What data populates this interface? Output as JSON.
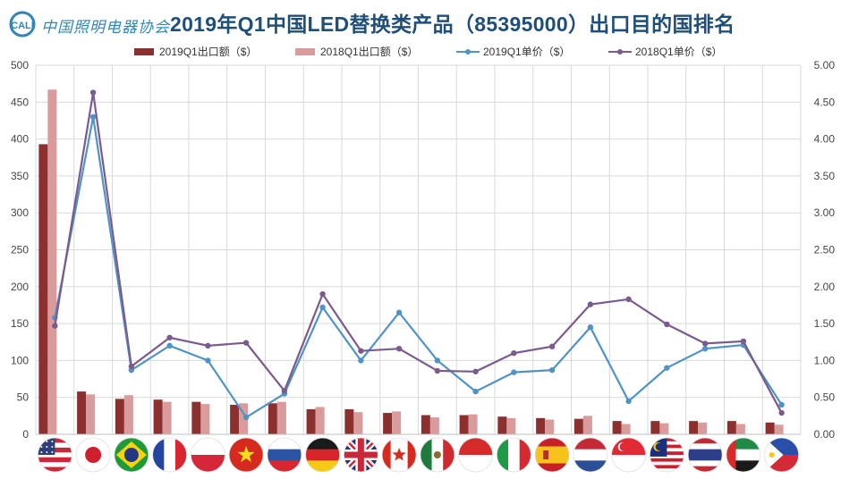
{
  "header": {
    "logo_text": "中国照明电器协会",
    "logo_mark": "CALI",
    "title": "2019年Q1中国LED替换类产品（85395000）出口目的国排名"
  },
  "chart_data": {
    "type": "bar",
    "categories": [
      "美国",
      "日本",
      "巴西",
      "法国",
      "波兰",
      "越南",
      "俄罗斯",
      "德国",
      "英国",
      "加拿大",
      "墨西哥",
      "印度尼西亚",
      "意大利",
      "西班牙",
      "荷兰",
      "新加坡",
      "马来西亚",
      "泰国",
      "阿联酋",
      "菲律宾"
    ],
    "category_icons": [
      "flag-usa-icon",
      "flag-japan-icon",
      "flag-brazil-icon",
      "flag-france-icon",
      "flag-poland-icon",
      "flag-vietnam-icon",
      "flag-russia-icon",
      "flag-germany-icon",
      "flag-uk-icon",
      "flag-canada-icon",
      "flag-mexico-icon",
      "flag-indonesia-icon",
      "flag-italy-icon",
      "flag-spain-icon",
      "flag-netherlands-icon",
      "flag-singapore-icon",
      "flag-malaysia-icon",
      "flag-thailand-icon",
      "flag-uae-icon",
      "flag-philippines-icon"
    ],
    "series": [
      {
        "name": "2019Q1出口额（$）",
        "kind": "bar",
        "axis": "left",
        "color": "#8b2f2f",
        "values": [
          393,
          58,
          48,
          47,
          44,
          40,
          42,
          34,
          34,
          29,
          26,
          26,
          24,
          22,
          21,
          18,
          18,
          18,
          18,
          16
        ]
      },
      {
        "name": "2018Q1出口额（$）",
        "kind": "bar",
        "axis": "left",
        "color": "#d99b9b",
        "values": [
          467,
          54,
          53,
          44,
          41,
          42,
          44,
          37,
          30,
          31,
          23,
          27,
          22,
          20,
          25,
          14,
          15,
          16,
          14,
          13
        ]
      },
      {
        "name": "2019Q1单价（$）",
        "kind": "line",
        "axis": "right",
        "color": "#4f93c7",
        "values": [
          1.58,
          4.3,
          0.87,
          1.2,
          1.0,
          0.23,
          0.55,
          1.72,
          1.0,
          1.65,
          1.0,
          0.58,
          0.84,
          0.87,
          1.45,
          0.45,
          0.9,
          1.16,
          1.21,
          0.4
        ]
      },
      {
        "name": "2018Q1单价（$）",
        "kind": "line",
        "axis": "right",
        "color": "#7b5a8e",
        "values": [
          1.47,
          4.63,
          0.92,
          1.31,
          1.2,
          1.24,
          0.59,
          1.9,
          1.13,
          1.16,
          0.86,
          0.85,
          1.1,
          1.19,
          1.76,
          1.83,
          1.49,
          1.23,
          1.26,
          0.29
        ]
      }
    ],
    "yleft_ticks": [
      "0",
      "50",
      "100",
      "150",
      "200",
      "250",
      "300",
      "350",
      "400",
      "450",
      "500"
    ],
    "yright_ticks": [
      "0.00",
      "0.50",
      "1.00",
      "1.50",
      "2.00",
      "2.50",
      "3.00",
      "3.50",
      "4.00",
      "4.50",
      "5.00"
    ],
    "ylim_left": [
      0,
      500
    ],
    "ylim_right": [
      0,
      5
    ],
    "grid": true,
    "legend_position": "top"
  }
}
